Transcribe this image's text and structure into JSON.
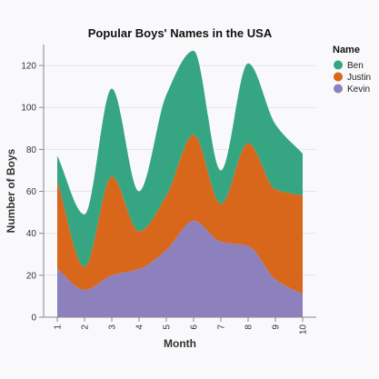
{
  "chart_data": {
    "type": "area",
    "stacked": true,
    "title": "Popular Boys' Names in the USA",
    "xlabel": "Month",
    "ylabel": "Number of Boys",
    "x": [
      1,
      2,
      3,
      4,
      5,
      6,
      7,
      8,
      9,
      10
    ],
    "ylim": [
      0,
      130
    ],
    "yticks": [
      0,
      20,
      40,
      60,
      80,
      100,
      120
    ],
    "grid": true,
    "legend": {
      "title": "Name",
      "placement": "top-right"
    },
    "series": [
      {
        "name": "Kevin",
        "color": "#8c80bd",
        "values": [
          23,
          13,
          20,
          23,
          32,
          46,
          36,
          34,
          18,
          11
        ]
      },
      {
        "name": "Justin",
        "color": "#d8661b",
        "values": [
          42,
          11,
          47,
          18,
          26,
          41,
          18,
          49,
          43,
          47
        ]
      },
      {
        "name": "Ben",
        "color": "#36a582",
        "values": [
          12,
          25,
          42,
          19,
          48,
          40,
          16,
          38,
          31,
          20
        ]
      }
    ],
    "legend_order": [
      "Ben",
      "Justin",
      "Kevin"
    ]
  }
}
